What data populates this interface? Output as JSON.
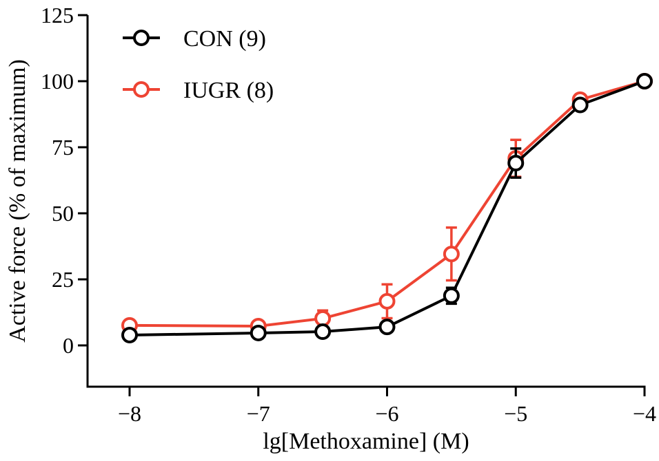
{
  "chart_data": {
    "type": "line",
    "title": "",
    "xlabel": "lg[Methoxamine] (M)",
    "ylabel": "Active force (% of maximum)",
    "xlim": [
      -8,
      -4
    ],
    "ylim": [
      -15,
      125
    ],
    "xticks": [
      -8,
      -7,
      -6,
      -5,
      -4
    ],
    "xtick_labels": [
      "−8",
      "−7",
      "−6",
      "−5",
      "−4"
    ],
    "yticks": [
      0,
      25,
      50,
      75,
      100,
      125
    ],
    "ytick_labels": [
      "0",
      "25",
      "50",
      "75",
      "100",
      "125"
    ],
    "grid": false,
    "legend_position": "top-left",
    "x": [
      -8,
      -7,
      -6.5,
      -6,
      -5.5,
      -5,
      -4.5,
      -4
    ],
    "series": [
      {
        "name": "CON (9)",
        "color": "#000000",
        "values": [
          3.9,
          4.7,
          5.2,
          7.0,
          18.8,
          69.0,
          91.0,
          100.0
        ],
        "errors": [
          0.8,
          0.8,
          0.8,
          1.0,
          3.0,
          5.5,
          1.5,
          0
        ]
      },
      {
        "name": "IUGR (8)",
        "color": "#ee4433",
        "values": [
          7.6,
          7.3,
          10.2,
          16.7,
          34.6,
          70.8,
          93.0,
          100.0
        ],
        "errors": [
          1.0,
          1.0,
          3.0,
          6.4,
          10.0,
          7.0,
          1.0,
          0
        ]
      }
    ]
  }
}
